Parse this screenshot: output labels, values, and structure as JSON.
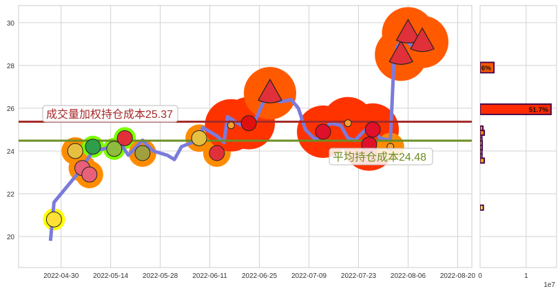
{
  "chart_data": [
    {
      "type": "line",
      "xlim": [
        "2022-04-18",
        "2022-08-24"
      ],
      "ylim": [
        18.55,
        30.8
      ],
      "grid": true,
      "x_ticks": [
        "2022-04-30",
        "2022-05-14",
        "2022-05-28",
        "2022-06-11",
        "2022-06-25",
        "2022-07-09",
        "2022-07-23",
        "2022-08-06",
        "2022-08-20"
      ],
      "y_ticks": [
        20,
        22,
        24,
        26,
        28,
        30
      ],
      "line_color": "#7b7bdc",
      "series": [
        {
          "values": [
            [
              "2022-04-27",
              19.8
            ],
            [
              "2022-04-28",
              21.6
            ],
            [
              "2022-05-05",
              23.0
            ],
            [
              "2022-05-09",
              24.0
            ],
            [
              "2022-05-12",
              24.1
            ],
            [
              "2022-05-17",
              24.3
            ],
            [
              "2022-05-19",
              23.8
            ],
            [
              "2022-05-23",
              24.5
            ],
            [
              "2022-05-26",
              24.0
            ],
            [
              "2022-05-30",
              23.8
            ],
            [
              "2022-06-01",
              23.6
            ],
            [
              "2022-06-03",
              24.2
            ],
            [
              "2022-06-06",
              24.4
            ],
            [
              "2022-06-08",
              24.5
            ],
            [
              "2022-06-09",
              25.1
            ],
            [
              "2022-06-13",
              24.7
            ],
            [
              "2022-06-15",
              24.4
            ],
            [
              "2022-06-16",
              25.6
            ],
            [
              "2022-06-20",
              25.2
            ],
            [
              "2022-06-22",
              25.2
            ],
            [
              "2022-06-24",
              25.5
            ],
            [
              "2022-06-27",
              26.6
            ],
            [
              "2022-06-28",
              26.5
            ],
            [
              "2022-07-01",
              26.3
            ],
            [
              "2022-07-04",
              26.4
            ],
            [
              "2022-07-06",
              26.0
            ],
            [
              "2022-07-08",
              25.0
            ],
            [
              "2022-07-11",
              24.5
            ],
            [
              "2022-07-13",
              24.9
            ],
            [
              "2022-07-15",
              25.3
            ],
            [
              "2022-07-18",
              25.2
            ],
            [
              "2022-07-20",
              24.6
            ],
            [
              "2022-07-22",
              24.5
            ],
            [
              "2022-07-25",
              25.0
            ],
            [
              "2022-07-27",
              25.1
            ],
            [
              "2022-07-29",
              24.6
            ],
            [
              "2022-08-01",
              24.5
            ],
            [
              "2022-08-02",
              28.2
            ],
            [
              "2022-08-03",
              28.9
            ],
            [
              "2022-08-05",
              29.2
            ],
            [
              "2022-08-08",
              28.8
            ]
          ]
        }
      ],
      "markers": [
        {
          "date": "2022-04-28",
          "price": 20.8,
          "fruit": "banana",
          "color": "#ffff00"
        },
        {
          "date": "2022-05-04",
          "price": 24.0,
          "fruit": "pineapple",
          "color": "#ff8c00"
        },
        {
          "date": "2022-05-06",
          "price": 23.2,
          "fruit": "radish",
          "color": "#ff8c00"
        },
        {
          "date": "2022-05-08",
          "price": 22.9,
          "fruit": "radish",
          "color": "#ff8c00"
        },
        {
          "date": "2022-05-09",
          "price": 24.2,
          "fruit": "peas",
          "color": "#7cfc00"
        },
        {
          "date": "2022-05-15",
          "price": 24.1,
          "fruit": "kiwi",
          "color": "#7cfc00"
        },
        {
          "date": "2022-05-18",
          "price": 24.6,
          "fruit": "watermelon",
          "color": "#7cfc00"
        },
        {
          "date": "2022-05-23",
          "price": 23.9,
          "fruit": "pear",
          "color": "#ff8c00"
        },
        {
          "date": "2022-06-08",
          "price": 24.6,
          "fruit": "pineapple",
          "color": "#ff8c00"
        },
        {
          "date": "2022-06-13",
          "price": 23.9,
          "fruit": "watermelon",
          "color": "#ff8c00"
        },
        {
          "date": "2022-06-17",
          "price": 25.2,
          "fruit": "carrot",
          "color": "#ff3300"
        },
        {
          "date": "2022-06-22",
          "price": 25.3,
          "fruit": "apple",
          "color": "#ff3300"
        },
        {
          "date": "2022-06-28",
          "price": 26.7,
          "fruit": "watermelon",
          "color": "#ff5a00"
        },
        {
          "date": "2022-07-13",
          "price": 24.9,
          "fruit": "strawberry",
          "color": "#ff3300"
        },
        {
          "date": "2022-07-20",
          "price": 25.3,
          "fruit": "carrot",
          "color": "#ff3300"
        },
        {
          "date": "2022-07-27",
          "price": 25.0,
          "fruit": "strawberry",
          "color": "#ff3300"
        },
        {
          "date": "2022-07-26",
          "price": 24.3,
          "fruit": "strawberry",
          "color": "#ff3300"
        },
        {
          "date": "2022-08-01",
          "price": 24.2,
          "fruit": "carrot",
          "color": "#ff8c00"
        },
        {
          "date": "2022-08-04",
          "price": 28.5,
          "fruit": "watermelon",
          "color": "#ff5a00"
        },
        {
          "date": "2022-08-06",
          "price": 29.5,
          "fruit": "watermelon",
          "color": "#ff5a00"
        },
        {
          "date": "2022-08-10",
          "price": 29.1,
          "fruit": "watermelon",
          "color": "#ff5a00"
        }
      ],
      "hlines": [
        {
          "value": 25.37,
          "label": "成交量加权持仓成本25.37",
          "color": "#a52a2a"
        },
        {
          "value": 24.48,
          "label": "平均持仓成本24.48",
          "color": "#6b8e23"
        }
      ]
    },
    {
      "type": "bar",
      "orientation": "horizontal",
      "xlim": [
        0,
        16600000
      ],
      "ylim": [
        18.55,
        30.8
      ],
      "x_ticks": [
        "0",
        "1"
      ],
      "x_offset_label": "1e7",
      "grid": true,
      "bars": [
        {
          "price": 27.9,
          "value": 3000000,
          "label": "6%",
          "color": "#ff5a00"
        },
        {
          "price": 25.95,
          "value": 15400000,
          "label": "51.7%",
          "color": "#ff2a00"
        },
        {
          "price": 25.05,
          "value": 600000,
          "label": "",
          "color": "#ffa500"
        },
        {
          "price": 24.85,
          "value": 900000,
          "label": "",
          "color": "#ff7f00"
        },
        {
          "price": 24.55,
          "value": 400000,
          "label": "",
          "color": "#7cfc00"
        },
        {
          "price": 24.35,
          "value": 450000,
          "label": "",
          "color": "#d4ff00"
        },
        {
          "price": 24.15,
          "value": 450000,
          "label": "",
          "color": "#7cfc00"
        },
        {
          "price": 23.95,
          "value": 400000,
          "label": "",
          "color": "#adff2f"
        },
        {
          "price": 23.75,
          "value": 400000,
          "label": "",
          "color": "#7cfc00"
        },
        {
          "price": 23.55,
          "value": 900000,
          "label": "",
          "color": "#ffa500"
        },
        {
          "price": 21.35,
          "value": 700000,
          "label": "",
          "color": "#ffff00"
        }
      ]
    }
  ]
}
